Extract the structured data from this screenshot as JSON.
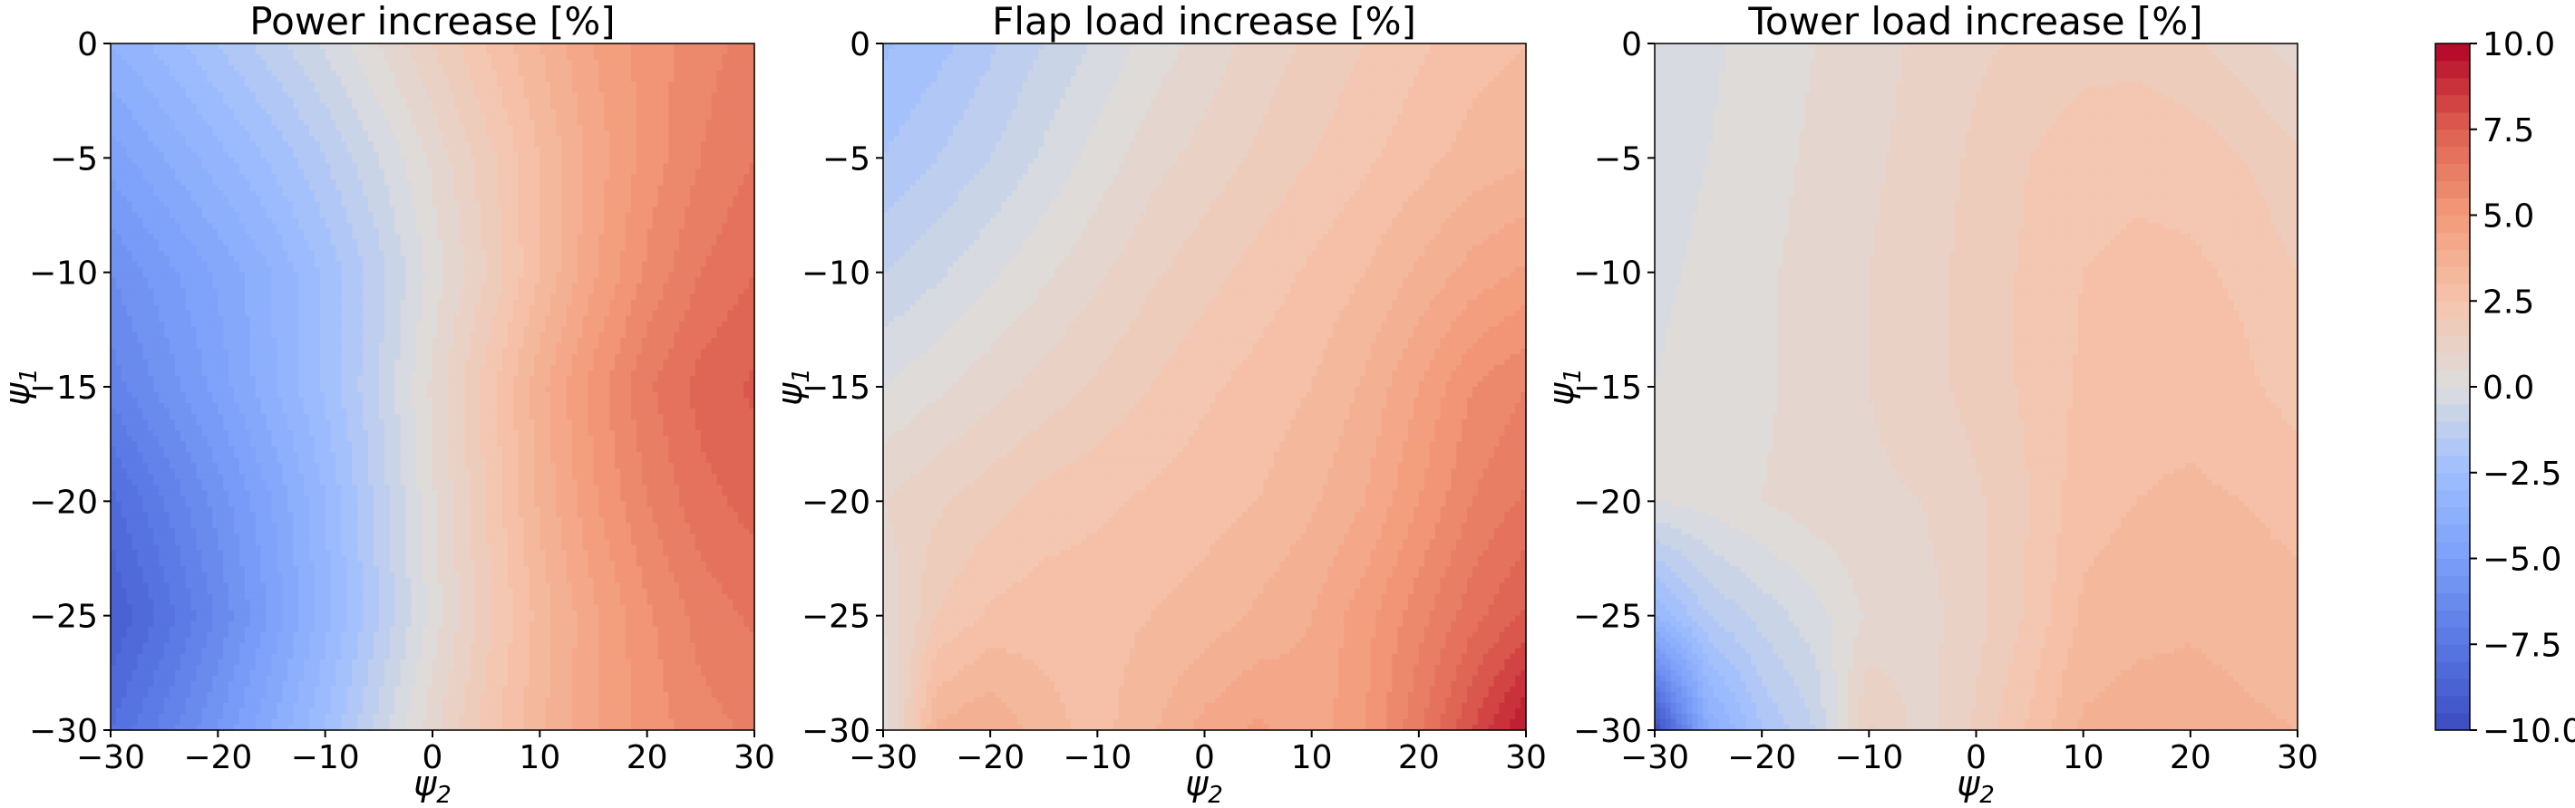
{
  "chart_data": [
    {
      "type": "heatmap",
      "title": "Power increase [%]",
      "xlabel": "ψ",
      "xlabel_sub": "2",
      "ylabel": "ψ",
      "ylabel_sub": "1",
      "x": [
        -30,
        -25,
        -20,
        -15,
        -10,
        -5,
        0,
        5,
        10,
        15,
        20,
        25,
        30
      ],
      "y": [
        0,
        -5,
        -10,
        -15,
        -20,
        -25,
        -30
      ],
      "xticks": [
        "−30",
        "−20",
        "−10",
        "0",
        "10",
        "20",
        "30"
      ],
      "yticks": [
        "0",
        "−5",
        "−10",
        "−15",
        "−20",
        "−25",
        "−30"
      ],
      "xlim": [
        -30,
        30
      ],
      "ylim": [
        -30,
        0
      ],
      "z": [
        [
          -3.5,
          -2.8,
          -2.0,
          -1.2,
          -0.4,
          0.5,
          1.5,
          2.5,
          3.5,
          4.5,
          5.2,
          5.8,
          6.2
        ],
        [
          -4.8,
          -4.0,
          -3.2,
          -2.4,
          -1.5,
          -0.5,
          0.6,
          1.8,
          3.0,
          4.2,
          5.2,
          6.0,
          6.5
        ],
        [
          -6.0,
          -5.2,
          -4.4,
          -3.5,
          -2.4,
          -1.2,
          0.2,
          1.5,
          3.0,
          4.4,
          5.6,
          6.5,
          7.0
        ],
        [
          -6.8,
          -5.8,
          -4.8,
          -3.6,
          -2.4,
          -1.0,
          0.6,
          2.2,
          3.8,
          5.2,
          6.4,
          7.2,
          7.6
        ],
        [
          -8.2,
          -7.0,
          -5.8,
          -4.5,
          -3.0,
          -1.3,
          0.4,
          2.0,
          3.6,
          4.9,
          6.0,
          6.8,
          7.2
        ],
        [
          -9.0,
          -7.8,
          -6.4,
          -4.9,
          -3.2,
          -1.5,
          0.2,
          1.8,
          3.2,
          4.4,
          5.4,
          6.2,
          6.6
        ],
        [
          -8.0,
          -6.8,
          -5.5,
          -4.0,
          -2.5,
          -0.8,
          0.8,
          2.2,
          3.4,
          4.4,
          5.2,
          5.8,
          6.1
        ]
      ]
    },
    {
      "type": "heatmap",
      "title": "Flap load increase [%]",
      "xlabel": "ψ",
      "xlabel_sub": "2",
      "ylabel": "ψ",
      "ylabel_sub": "1",
      "x": [
        -30,
        -25,
        -20,
        -15,
        -10,
        -5,
        0,
        5,
        10,
        15,
        20,
        25,
        30
      ],
      "y": [
        0,
        -5,
        -10,
        -15,
        -20,
        -25,
        -30
      ],
      "xticks": [
        "−30",
        "−20",
        "−10",
        "0",
        "10",
        "20",
        "30"
      ],
      "yticks": [
        "0",
        "−5",
        "−10",
        "−15",
        "−20",
        "−25",
        "−30"
      ],
      "xlim": [
        -30,
        30
      ],
      "ylim": [
        -30,
        0
      ],
      "z": [
        [
          -2.6,
          -2.2,
          -1.6,
          -1.0,
          -0.4,
          0.2,
          0.7,
          1.2,
          1.6,
          2.0,
          2.4,
          2.8,
          3.0
        ],
        [
          -2.0,
          -1.5,
          -1.0,
          -0.4,
          0.2,
          0.8,
          1.2,
          1.6,
          2.0,
          2.4,
          2.8,
          3.2,
          3.4
        ],
        [
          -1.0,
          -0.6,
          -0.1,
          0.4,
          0.9,
          1.4,
          1.8,
          2.2,
          2.6,
          3.0,
          3.6,
          4.2,
          4.6
        ],
        [
          0.0,
          0.4,
          0.8,
          1.2,
          1.6,
          2.0,
          2.4,
          2.7,
          3.0,
          3.6,
          4.5,
          5.5,
          6.0
        ],
        [
          1.0,
          1.4,
          1.8,
          2.2,
          2.4,
          2.6,
          2.8,
          3.0,
          3.4,
          4.0,
          5.0,
          6.0,
          6.6
        ],
        [
          0.5,
          2.0,
          2.6,
          2.8,
          2.8,
          3.0,
          3.2,
          3.6,
          4.0,
          4.8,
          5.8,
          6.8,
          7.6
        ],
        [
          0.0,
          3.6,
          4.0,
          3.2,
          2.8,
          3.4,
          4.2,
          4.6,
          4.2,
          5.0,
          6.4,
          8.0,
          9.6
        ]
      ]
    },
    {
      "type": "heatmap",
      "title": "Tower load increase [%]",
      "xlabel": "ψ",
      "xlabel_sub": "2",
      "ylabel": "ψ",
      "ylabel_sub": "1",
      "x": [
        -30,
        -25,
        -20,
        -15,
        -10,
        -5,
        0,
        5,
        10,
        15,
        20,
        25,
        30
      ],
      "y": [
        0,
        -5,
        -10,
        -15,
        -20,
        -25,
        -30
      ],
      "xticks": [
        "−30",
        "−20",
        "−10",
        "0",
        "10",
        "20",
        "30"
      ],
      "yticks": [
        "0",
        "−5",
        "−10",
        "−15",
        "−20",
        "−25",
        "−30"
      ],
      "xlim": [
        -30,
        30
      ],
      "ylim": [
        -30,
        0
      ],
      "z": [
        [
          -0.4,
          -0.1,
          0.2,
          0.5,
          0.8,
          1.1,
          1.4,
          1.6,
          1.8,
          1.8,
          1.6,
          1.2,
          0.8
        ],
        [
          -0.2,
          0.0,
          0.3,
          0.6,
          0.9,
          1.2,
          1.6,
          2.0,
          2.3,
          2.4,
          2.3,
          2.0,
          1.6
        ],
        [
          -0.1,
          0.1,
          0.4,
          0.7,
          1.0,
          1.3,
          1.7,
          2.1,
          2.5,
          2.6,
          2.6,
          2.4,
          2.0
        ],
        [
          0.0,
          0.2,
          0.4,
          0.7,
          1.0,
          1.3,
          1.7,
          2.1,
          2.6,
          2.8,
          2.8,
          2.6,
          2.3
        ],
        [
          0.0,
          0.2,
          0.5,
          0.8,
          0.9,
          1.0,
          1.4,
          2.0,
          2.8,
          3.0,
          3.1,
          3.0,
          2.8
        ],
        [
          -3.0,
          -1.5,
          -0.8,
          -0.2,
          0.6,
          0.8,
          1.3,
          2.1,
          3.1,
          3.3,
          3.4,
          3.3,
          3.2
        ],
        [
          -10.0,
          -4.0,
          -2.0,
          -1.0,
          1.6,
          0.8,
          1.6,
          2.6,
          3.6,
          3.8,
          3.8,
          3.6,
          3.5
        ]
      ]
    }
  ],
  "colorbar": {
    "vmin": -10,
    "vmax": 10,
    "ticks": [
      -10,
      -7.5,
      -5,
      -2.5,
      0,
      2.5,
      5,
      7.5,
      10
    ],
    "tick_labels": [
      "−10.0",
      "−7.5",
      "−5.0",
      "−2.5",
      "0.0",
      "2.5",
      "5.0",
      "7.5",
      "10.0"
    ],
    "colormap": "coolwarm",
    "levels": 40
  },
  "colors": {
    "low": "#3b4cc0",
    "mid": "#dddddd",
    "high": "#b40426"
  }
}
